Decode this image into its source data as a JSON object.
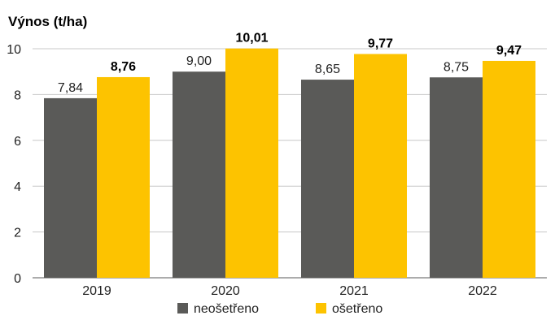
{
  "chart_data": {
    "type": "bar",
    "ylabel": "Výnos (t/ha)",
    "xlabel": "",
    "categories": [
      "2019",
      "2020",
      "2021",
      "2022"
    ],
    "ylim": [
      0,
      10
    ],
    "yticks": [
      0,
      2,
      4,
      6,
      8,
      10
    ],
    "grid": true,
    "legend_position": "bottom",
    "series": [
      {
        "name": "neošetřeno",
        "color": "#5a5a58",
        "values": [
          7.84,
          9.0,
          8.65,
          8.75
        ],
        "labels": [
          "7,84",
          "9,00",
          "8,65",
          "8,75"
        ],
        "label_bold": false
      },
      {
        "name": "ošetřeno",
        "color": "#fdc300",
        "values": [
          8.76,
          10.01,
          9.77,
          9.47
        ],
        "labels": [
          "8,76",
          "10,01",
          "9,77",
          "9,47"
        ],
        "label_bold": true
      }
    ]
  }
}
